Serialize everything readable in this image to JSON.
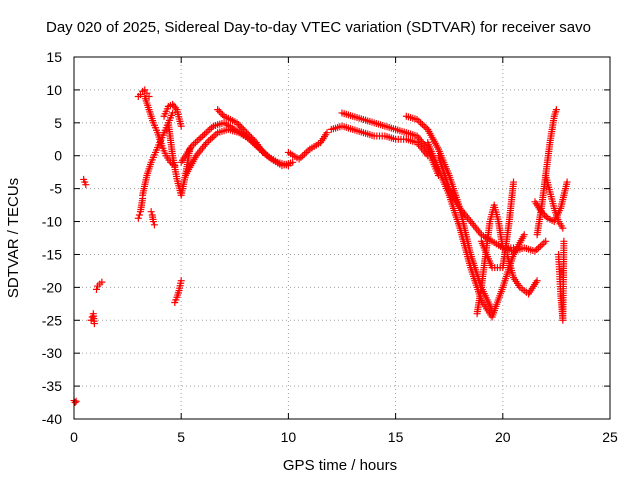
{
  "chart_data": {
    "type": "scatter",
    "title": "Day 020 of 2025, Sidereal Day-to-day VTEC variation (SDTVAR) for receiver savo",
    "xlabel": "GPS time / hours",
    "ylabel": "SDTVAR / TECUs",
    "xlim": [
      0,
      25
    ],
    "ylim": [
      -40,
      15
    ],
    "xticks": [
      0,
      5,
      10,
      15,
      20,
      25
    ],
    "yticks": [
      -40,
      -35,
      -30,
      -25,
      -20,
      -15,
      -10,
      -5,
      0,
      5,
      10,
      15
    ],
    "xtick_labels": [
      "0",
      "5",
      "10",
      "15",
      "20",
      "25"
    ],
    "ytick_labels": [
      "-40",
      "-35",
      "-30",
      "-25",
      "-20",
      "-15",
      "-10",
      "-5",
      "0",
      "5",
      "10",
      "15"
    ],
    "grid": true,
    "marker": "+",
    "color": "#ff0000",
    "series": [
      {
        "name": "s1",
        "x": [
          0.0,
          0.05,
          0.1
        ],
        "y": [
          -37.2,
          -37.5,
          -37.3
        ]
      },
      {
        "name": "s2",
        "x": [
          0.45,
          0.5,
          0.55
        ],
        "y": [
          -3.6,
          -4.0,
          -4.4
        ]
      },
      {
        "name": "s3",
        "x": [
          0.8,
          0.85,
          0.9,
          0.95
        ],
        "y": [
          -25.0,
          -24.5,
          -24.0,
          -25.5
        ]
      },
      {
        "name": "s4",
        "x": [
          1.05,
          1.1,
          1.2,
          1.3
        ],
        "y": [
          -20.3,
          -19.8,
          -19.5,
          -19.2
        ]
      },
      {
        "name": "s5",
        "x": [
          3.0,
          3.05,
          3.1,
          3.15,
          3.2
        ],
        "y": [
          -9.5,
          -9.0,
          -8.5,
          -7.5,
          -6.5
        ]
      },
      {
        "name": "s6",
        "x": [
          3.0,
          3.1,
          3.2,
          3.3,
          3.4,
          3.5
        ],
        "y": [
          9.0,
          9.3,
          9.8,
          10.0,
          9.5,
          9.0
        ]
      },
      {
        "name": "s7",
        "x": [
          3.2,
          3.4,
          3.6,
          3.8,
          4.0,
          4.2,
          4.4,
          4.6
        ],
        "y": [
          -6.0,
          -3.0,
          -1.0,
          0.5,
          2.0,
          3.5,
          5.0,
          6.5
        ]
      },
      {
        "name": "s8",
        "x": [
          3.3,
          3.5,
          3.7,
          3.9,
          4.1,
          4.3,
          4.5,
          4.7
        ],
        "y": [
          9.0,
          7.0,
          5.0,
          3.5,
          1.5,
          0.0,
          -1.0,
          -1.5
        ]
      },
      {
        "name": "s9",
        "x": [
          3.6,
          3.65,
          3.7,
          3.75
        ],
        "y": [
          -8.5,
          -9.0,
          -10.0,
          -10.5
        ]
      },
      {
        "name": "s10",
        "x": [
          4.2,
          4.4,
          4.6,
          4.8,
          5.0
        ],
        "y": [
          6.0,
          7.5,
          7.8,
          7.0,
          4.5
        ]
      },
      {
        "name": "s11",
        "x": [
          4.4,
          4.6,
          4.8,
          5.0,
          5.2,
          5.4
        ],
        "y": [
          5.0,
          0.0,
          -3.5,
          -6.0,
          -3.0,
          1.0
        ]
      },
      {
        "name": "s12",
        "x": [
          4.7,
          4.8,
          4.9,
          5.0
        ],
        "y": [
          -22.3,
          -21.5,
          -20.5,
          -19.0
        ]
      },
      {
        "name": "s13",
        "x": [
          5.0,
          5.5,
          6.0,
          6.5,
          7.0,
          7.5,
          8.0,
          8.5,
          9.0,
          9.5,
          10.0
        ],
        "y": [
          -1.0,
          1.5,
          3.0,
          4.5,
          5.0,
          4.0,
          3.0,
          1.5,
          0.0,
          -1.0,
          -1.5
        ]
      },
      {
        "name": "s14",
        "x": [
          5.2,
          5.7,
          6.2,
          6.7,
          7.2,
          7.7,
          8.2,
          8.7,
          9.2,
          9.7,
          10.2
        ],
        "y": [
          -3.0,
          0.0,
          2.0,
          3.5,
          4.0,
          3.5,
          2.5,
          1.0,
          -0.5,
          -1.5,
          -1.0
        ]
      },
      {
        "name": "s15",
        "x": [
          6.7,
          7.0,
          7.3,
          7.6,
          7.9,
          8.2,
          8.5,
          8.8
        ],
        "y": [
          7.0,
          6.0,
          5.5,
          5.0,
          4.0,
          3.0,
          2.0,
          0.5
        ]
      },
      {
        "name": "s16",
        "x": [
          10.0,
          10.5,
          11.0,
          11.5,
          11.8
        ],
        "y": [
          0.5,
          -0.5,
          1.0,
          2.0,
          3.5
        ]
      },
      {
        "name": "s17",
        "x": [
          12.5,
          13.0,
          13.5,
          14.0,
          14.5,
          15.0,
          15.5,
          16.0,
          16.5,
          17.0
        ],
        "y": [
          6.5,
          6.0,
          5.5,
          5.0,
          4.5,
          4.0,
          3.5,
          3.0,
          1.0,
          -3.0
        ]
      },
      {
        "name": "s18",
        "x": [
          12.0,
          12.5,
          13.0,
          13.5,
          14.0,
          14.5,
          15.0,
          15.5,
          16.0,
          16.5
        ],
        "y": [
          4.0,
          4.5,
          4.0,
          3.5,
          3.0,
          3.0,
          2.5,
          2.5,
          2.0,
          0.0
        ]
      },
      {
        "name": "s19",
        "x": [
          15.5,
          16.0,
          16.5,
          17.0,
          17.5,
          18.0,
          18.5,
          19.0,
          19.5
        ],
        "y": [
          6.0,
          5.5,
          4.0,
          1.0,
          -3.0,
          -8.0,
          -15.0,
          -20.0,
          -23.5
        ]
      },
      {
        "name": "s20",
        "x": [
          16.5,
          17.0,
          17.5,
          18.0,
          18.5,
          19.0,
          19.5,
          20.0,
          20.5,
          21.0
        ],
        "y": [
          2.0,
          -2.0,
          -6.0,
          -11.0,
          -17.0,
          -22.0,
          -24.5,
          -20.0,
          -15.0,
          -12.0
        ]
      },
      {
        "name": "s21",
        "x": [
          17.0,
          17.5,
          18.0,
          18.5,
          19.0,
          19.5,
          20.0,
          20.5
        ],
        "y": [
          0.0,
          -5.0,
          -8.0,
          -10.0,
          -12.0,
          -13.0,
          -14.0,
          -14.0
        ]
      },
      {
        "name": "s22",
        "x": [
          18.8,
          19.0,
          19.2,
          19.4,
          19.6,
          19.8,
          20.0
        ],
        "y": [
          -24.0,
          -20.0,
          -15.0,
          -10.0,
          -7.5,
          -10.0,
          -14.0
        ]
      },
      {
        "name": "s23",
        "x": [
          19.0,
          19.5,
          20.0,
          20.3,
          20.5
        ],
        "y": [
          -13.0,
          -17.0,
          -17.0,
          -10.0,
          -4.0
        ]
      },
      {
        "name": "s24",
        "x": [
          20.0,
          20.5,
          21.0,
          21.5,
          22.0
        ],
        "y": [
          -14.0,
          -14.5,
          -14.0,
          -14.5,
          -13.0
        ]
      },
      {
        "name": "s25",
        "x": [
          20.2,
          20.5,
          20.8,
          21.2,
          21.6
        ],
        "y": [
          -15.0,
          -18.5,
          -20.0,
          -21.0,
          -19.0
        ]
      },
      {
        "name": "s26",
        "x": [
          21.6,
          21.8,
          22.0,
          22.2,
          22.4,
          22.5
        ],
        "y": [
          -12.0,
          -8.0,
          -3.0,
          2.0,
          6.0,
          7.0
        ]
      },
      {
        "name": "s27",
        "x": [
          21.5,
          21.8,
          22.1,
          22.4,
          22.7,
          23.0
        ],
        "y": [
          -7.0,
          -8.5,
          -9.5,
          -10.0,
          -8.0,
          -4.0
        ]
      },
      {
        "name": "s28",
        "x": [
          22.0,
          22.2,
          22.4,
          22.6,
          22.8
        ],
        "y": [
          -3.0,
          -5.5,
          -8.0,
          -10.0,
          -11.0
        ]
      },
      {
        "name": "s29",
        "x": [
          22.6,
          22.65,
          22.7,
          22.75,
          22.8,
          22.85
        ],
        "y": [
          -15.0,
          -18.0,
          -21.0,
          -23.0,
          -25.0,
          -13.0
        ]
      }
    ]
  }
}
